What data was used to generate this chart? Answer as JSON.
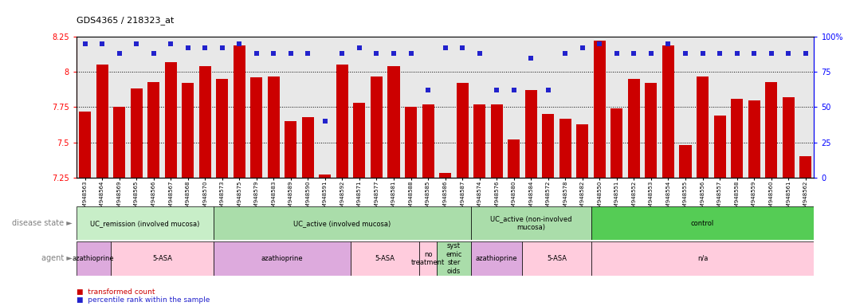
{
  "title": "GDS4365 / 218323_at",
  "samples": [
    "GSM948563",
    "GSM948564",
    "GSM948569",
    "GSM948565",
    "GSM948566",
    "GSM948567",
    "GSM948568",
    "GSM948570",
    "GSM948573",
    "GSM948575",
    "GSM948579",
    "GSM948583",
    "GSM948589",
    "GSM948590",
    "GSM948591",
    "GSM948592",
    "GSM948571",
    "GSM948577",
    "GSM948581",
    "GSM948588",
    "GSM948585",
    "GSM948586",
    "GSM948587",
    "GSM948574",
    "GSM948576",
    "GSM948580",
    "GSM948584",
    "GSM948572",
    "GSM948578",
    "GSM948582",
    "GSM948550",
    "GSM948551",
    "GSM948552",
    "GSM948553",
    "GSM948554",
    "GSM948555",
    "GSM948556",
    "GSM948557",
    "GSM948558",
    "GSM948559",
    "GSM948560",
    "GSM948561",
    "GSM948562"
  ],
  "bar_values": [
    7.72,
    8.05,
    7.75,
    7.88,
    7.93,
    8.07,
    7.92,
    8.04,
    7.95,
    8.19,
    7.96,
    7.97,
    7.65,
    7.68,
    7.27,
    8.05,
    7.78,
    7.97,
    8.04,
    7.75,
    7.77,
    7.28,
    7.92,
    7.77,
    7.77,
    7.52,
    7.87,
    7.7,
    7.67,
    7.63,
    8.22,
    7.74,
    7.95,
    7.92,
    8.19,
    7.48,
    7.97,
    7.69,
    7.81,
    7.8,
    7.93,
    7.82,
    7.4
  ],
  "percentile_values": [
    95,
    95,
    88,
    95,
    88,
    95,
    92,
    92,
    92,
    95,
    88,
    88,
    88,
    88,
    40,
    88,
    92,
    88,
    88,
    88,
    62,
    92,
    92,
    88,
    62,
    62,
    85,
    62,
    88,
    92,
    95,
    88,
    88,
    88,
    95,
    88,
    88,
    88,
    88,
    88,
    88,
    88,
    88
  ],
  "ylim_left": [
    7.25,
    8.25
  ],
  "ylim_right": [
    0,
    100
  ],
  "yticks_left": [
    7.25,
    7.5,
    7.75,
    8.0,
    8.25
  ],
  "yticks_right": [
    0,
    25,
    50,
    75,
    100
  ],
  "ytick_labels_left": [
    "7.25",
    "7.5",
    "7.75",
    "8",
    "8.25"
  ],
  "ytick_labels_right": [
    "0",
    "25",
    "50",
    "75",
    "100%"
  ],
  "bar_color": "#CC0000",
  "dot_color": "#2222CC",
  "background_color": "#E8E8E8",
  "disease_state_groups": [
    {
      "label": "UC_remission (involved mucosa)",
      "start": 0,
      "end": 8,
      "color": "#C8EEC8"
    },
    {
      "label": "UC_active (involved mucosa)",
      "start": 8,
      "end": 23,
      "color": "#AADDAA"
    },
    {
      "label": "UC_active (non-involved\nmucosa)",
      "start": 23,
      "end": 30,
      "color": "#AADDAA"
    },
    {
      "label": "control",
      "start": 30,
      "end": 43,
      "color": "#55CC55"
    }
  ],
  "agent_groups": [
    {
      "label": "azathioprine",
      "start": 0,
      "end": 2,
      "color": "#DDAADD"
    },
    {
      "label": "5-ASA",
      "start": 2,
      "end": 8,
      "color": "#FFCCDD"
    },
    {
      "label": "azathioprine",
      "start": 8,
      "end": 16,
      "color": "#DDAADD"
    },
    {
      "label": "5-ASA",
      "start": 16,
      "end": 20,
      "color": "#FFCCDD"
    },
    {
      "label": "no\ntreatment",
      "start": 20,
      "end": 21,
      "color": "#FFCCDD"
    },
    {
      "label": "syst\nemic\nster\noids",
      "start": 21,
      "end": 23,
      "color": "#AADDAA"
    },
    {
      "label": "azathioprine",
      "start": 23,
      "end": 26,
      "color": "#DDAADD"
    },
    {
      "label": "5-ASA",
      "start": 26,
      "end": 30,
      "color": "#FFCCDD"
    },
    {
      "label": "n/a",
      "start": 30,
      "end": 43,
      "color": "#FFCCDD"
    }
  ],
  "legend_labels": [
    "transformed count",
    "percentile rank within the sample"
  ],
  "legend_colors": [
    "#CC0000",
    "#2222CC"
  ]
}
